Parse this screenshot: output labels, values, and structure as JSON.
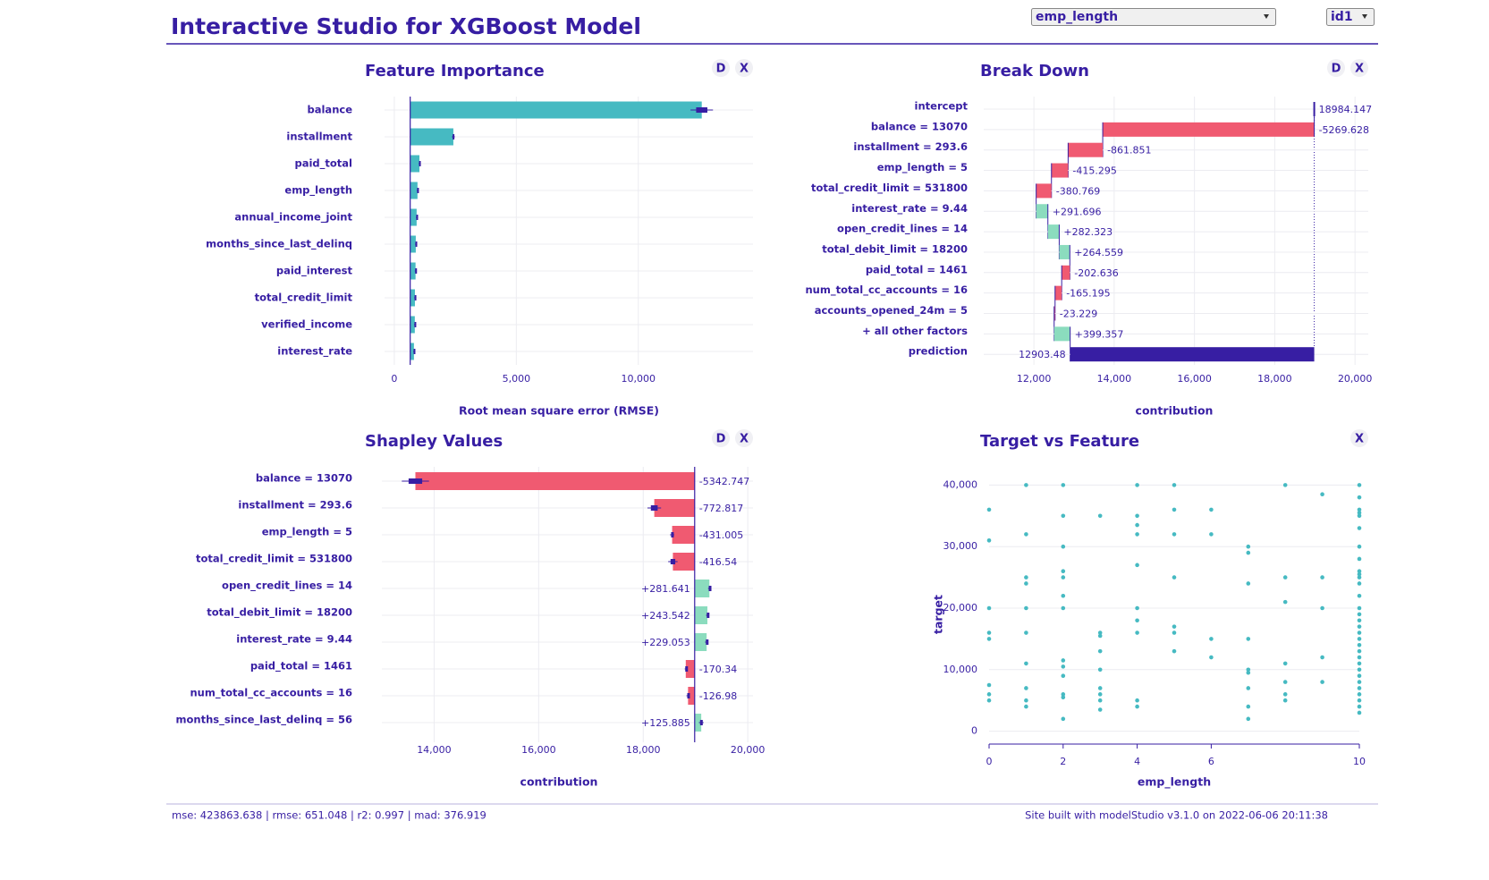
{
  "header": {
    "title": "Interactive Studio for XGBoost Model",
    "variable_select": "emp_length",
    "observation_select": "id1"
  },
  "feature_importance": {
    "type": "importance",
    "title": "Feature Importance",
    "buttons": [
      "D",
      "X"
    ],
    "categories": [
      "balance",
      "installment",
      "paid_total",
      "emp_length",
      "annual_income_joint",
      "months_since_last_delinq",
      "paid_interest",
      "total_credit_limit",
      "verified_income",
      "interest_rate"
    ],
    "values": [
      12600,
      2420,
      1030,
      950,
      915,
      880,
      870,
      845,
      840,
      805
    ],
    "errors": [
      460,
      60,
      35,
      30,
      30,
      30,
      30,
      30,
      30,
      30
    ],
    "baseline": 651.048,
    "color": "#46bac2",
    "xlim": [
      -400,
      14700
    ],
    "xticks": [
      0,
      {
        "value": 5000,
        "label": "5,000"
      },
      {
        "value": 10000,
        "label": "10,000"
      }
    ],
    "xlabel": "Root mean square error (RMSE)",
    "grid": true
  },
  "break_down": {
    "type": "waterfall",
    "title": "Break Down",
    "buttons": [
      "D",
      "X"
    ],
    "categories": [
      "intercept",
      "balance = 13070",
      "installment = 293.6",
      "emp_length = 5",
      "total_credit_limit = 531800",
      "interest_rate = 9.44",
      "open_credit_lines = 14",
      "total_debit_limit = 18200",
      "paid_total = 1461",
      "num_total_cc_accounts = 16",
      "accounts_opened_24m = 5",
      "+ all other factors",
      "prediction"
    ],
    "values": [
      18984.147,
      -5269.628,
      -861.851,
      -415.295,
      -380.769,
      291.696,
      282.323,
      264.559,
      -202.636,
      -165.195,
      -23.229,
      399.357,
      12903.48
    ],
    "value_labels": [
      "18984.147",
      "-5269.628",
      "-861.851",
      "-415.295",
      "-380.769",
      "+291.696",
      "+282.323",
      "+264.559",
      "-202.636",
      "-165.195",
      "-23.229",
      "+399.357",
      "12903.48"
    ],
    "colors": {
      "positive": "#8bdcbe",
      "negative": "#f05a71",
      "prediction": "#371ea3"
    },
    "xlim": [
      10750,
      20330
    ],
    "xticks": [
      {
        "value": 12000,
        "label": "12,000"
      },
      {
        "value": 14000,
        "label": "14,000"
      },
      {
        "value": 16000,
        "label": "16,000"
      },
      {
        "value": 18000,
        "label": "18,000"
      },
      {
        "value": 20000,
        "label": "20,000"
      }
    ],
    "xlabel": "contribution",
    "grid": true
  },
  "shapley_values": {
    "type": "shapley",
    "title": "Shapley Values",
    "buttons": [
      "D",
      "X"
    ],
    "categories": [
      "balance = 13070",
      "installment = 293.6",
      "emp_length = 5",
      "total_credit_limit = 531800",
      "open_credit_lines = 14",
      "total_debit_limit = 18200",
      "interest_rate = 9.44",
      "paid_total = 1461",
      "num_total_cc_accounts = 16",
      "months_since_last_delinq = 56"
    ],
    "values": [
      -5342.747,
      -772.817,
      -431.005,
      -416.54,
      281.641,
      243.542,
      229.053,
      -170.34,
      -126.98,
      125.885
    ],
    "value_labels": [
      "-5342.747",
      "-772.817",
      "-431.005",
      "-416.54",
      "+281.641",
      "+243.542",
      "+229.053",
      "-170.34",
      "-126.98",
      "+125.885"
    ],
    "errors": [
      260,
      130,
      40,
      90,
      25,
      25,
      30,
      20,
      30,
      45
    ],
    "colors": {
      "positive": "#8bdcbe",
      "negative": "#f05a71"
    },
    "xlim": [
      13000,
      20100
    ],
    "xticks": [
      {
        "value": 14000,
        "label": "14,000"
      },
      {
        "value": 16000,
        "label": "16,000"
      },
      {
        "value": 18000,
        "label": "18,000"
      },
      {
        "value": 20000,
        "label": "20,000"
      }
    ],
    "xlabel": "contribution",
    "grid": true
  },
  "target_vs_feature": {
    "type": "scatter",
    "title": "Target vs Feature",
    "buttons": [
      "X"
    ],
    "color": "#46bac2",
    "x": [
      0,
      0,
      0,
      0,
      0,
      0,
      0,
      0,
      1,
      1,
      1,
      1,
      1,
      1,
      1,
      1,
      1,
      1,
      2,
      2,
      2,
      2,
      2,
      2,
      2,
      2,
      2,
      2,
      2,
      2,
      2,
      3,
      3,
      3,
      3,
      3,
      3,
      3,
      3,
      3,
      4,
      4,
      4,
      4,
      4,
      4,
      4,
      4,
      4,
      4,
      5,
      5,
      5,
      5,
      5,
      5,
      5,
      6,
      6,
      6,
      6,
      7,
      7,
      7,
      7,
      7,
      7,
      7,
      7,
      7,
      8,
      8,
      8,
      8,
      8,
      8,
      8,
      9,
      9,
      9,
      9,
      9,
      10,
      10,
      10,
      10,
      10,
      10,
      10,
      10,
      10,
      10,
      10,
      10,
      10,
      10,
      10,
      10,
      10,
      10,
      10,
      10,
      10,
      10,
      10,
      10,
      10,
      10,
      10,
      10,
      10,
      10,
      10
    ],
    "y": [
      36000,
      31000,
      20000,
      16000,
      15000,
      7500,
      6000,
      5000,
      40000,
      32000,
      25000,
      24000,
      20000,
      16000,
      11000,
      7000,
      5000,
      4000,
      40000,
      35000,
      30000,
      26000,
      25000,
      22000,
      20000,
      11500,
      10500,
      9000,
      6000,
      5500,
      2000,
      35000,
      16000,
      15500,
      13000,
      10000,
      7000,
      6000,
      5000,
      3500,
      40000,
      35000,
      33500,
      32000,
      27000,
      20000,
      18000,
      16000,
      5000,
      4000,
      40000,
      36000,
      32000,
      25000,
      17000,
      16000,
      13000,
      36000,
      32000,
      15000,
      12000,
      30000,
      29000,
      24000,
      15000,
      10000,
      9500,
      7000,
      4000,
      2000,
      40000,
      25000,
      21000,
      11000,
      8000,
      6000,
      5000,
      38500,
      25000,
      20000,
      12000,
      8000,
      40000,
      38000,
      36000,
      35500,
      35000,
      33000,
      30000,
      28000,
      26000,
      25500,
      25000,
      24000,
      22000,
      20000,
      19000,
      18000,
      17000,
      16000,
      15000,
      14000,
      13000,
      12000,
      11000,
      10000,
      9000,
      8000,
      7000,
      6000,
      5000,
      4000,
      3000
    ],
    "xlim": [
      0,
      10
    ],
    "ylim": [
      -1800,
      41800
    ],
    "xticks": [
      0,
      2,
      4,
      6,
      10
    ],
    "yticks": [
      0,
      {
        "value": 10000,
        "label": "10,000"
      },
      {
        "value": 20000,
        "label": "20,000"
      },
      {
        "value": 30000,
        "label": "30,000"
      },
      {
        "value": 40000,
        "label": "40,000"
      }
    ],
    "xlabel": "emp_length",
    "ylabel": "target",
    "grid": true
  },
  "footer": {
    "metrics": "mse: 423863.638 | rmse: 651.048 | r2: 0.997 | mad: 376.919",
    "credit": "Site built with modelStudio v3.1.0 on 2022-06-06 20:11:38"
  }
}
